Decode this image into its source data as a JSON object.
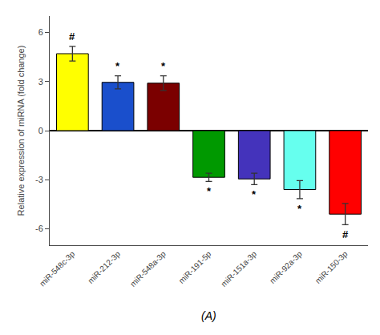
{
  "chart_data": {
    "type": "bar",
    "categories": [
      "miR-548c-3p",
      "miR-212-3p",
      "miR-548a-3p",
      "miR-191-5p",
      "miR-151a-3p",
      "miR-92a-3p",
      "miR-150-3p"
    ],
    "values": [
      4.7,
      2.95,
      2.9,
      -2.85,
      -2.95,
      -3.6,
      -5.1
    ],
    "errors": [
      0.45,
      0.4,
      0.45,
      0.25,
      0.35,
      0.55,
      0.65
    ],
    "colors": [
      "#FFFF00",
      "#1A4FCC",
      "#7B0000",
      "#009900",
      "#4433BB",
      "#66FFEE",
      "#FF0000"
    ],
    "significance": [
      "#",
      "*",
      "*",
      "*",
      "*",
      "*",
      "#"
    ],
    "ylabel": "Relative expression of miRNA (fold change)",
    "subtitle": "(A)",
    "ylim": [
      -7,
      7
    ],
    "yticks": [
      -6,
      -3,
      0,
      3,
      6
    ],
    "grid": false
  }
}
